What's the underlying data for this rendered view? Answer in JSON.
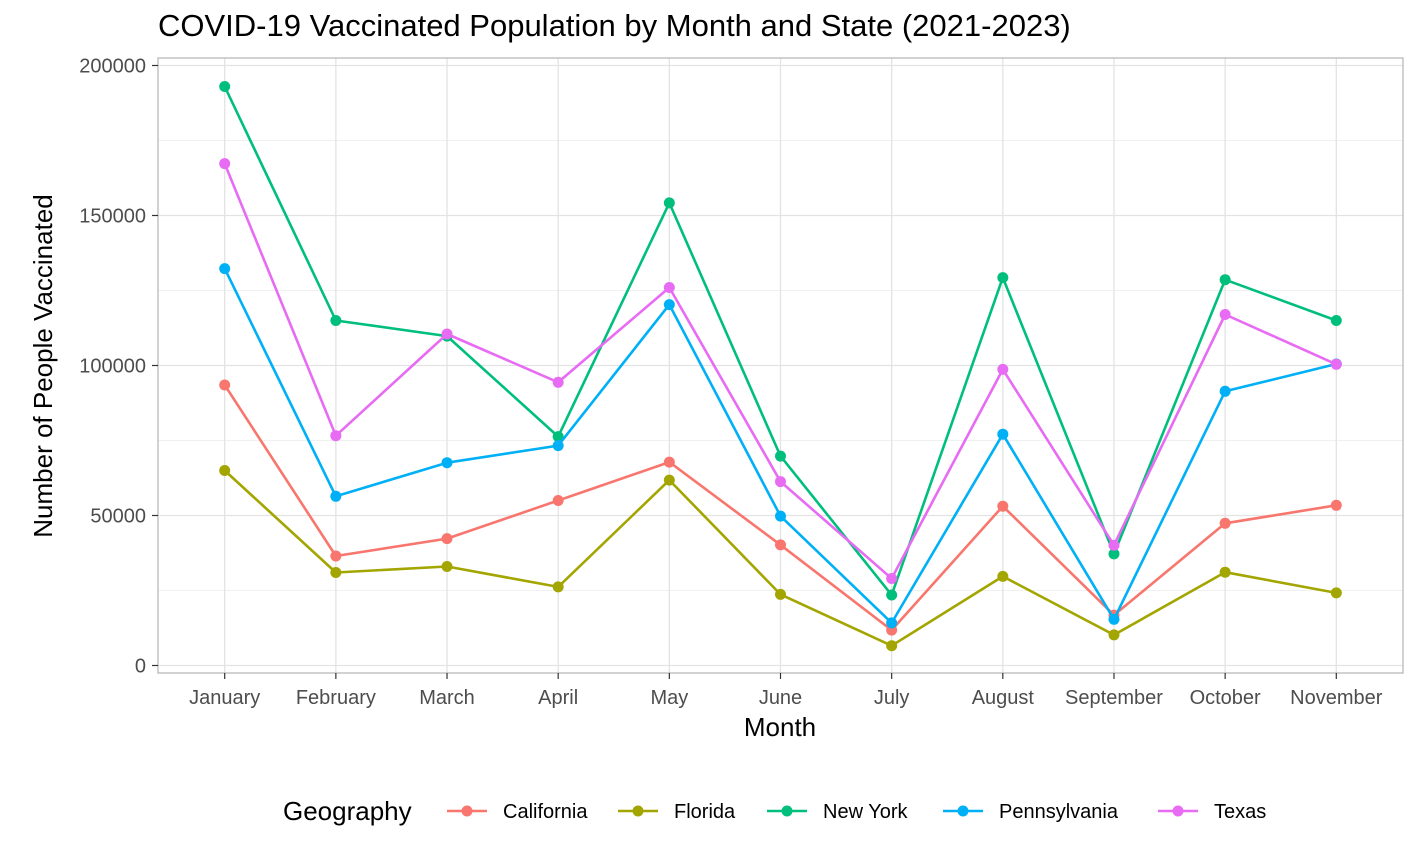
{
  "chart_data": {
    "type": "line",
    "title": "COVID-19 Vaccinated Population by Month and State (2021-2023)",
    "xlabel": "Month",
    "ylabel": "Number of People Vaccinated",
    "categories": [
      "January",
      "February",
      "March",
      "April",
      "May",
      "June",
      "July",
      "August",
      "September",
      "October",
      "November"
    ],
    "yticks": [
      0,
      50000,
      100000,
      150000,
      200000
    ],
    "ytick_labels": [
      "0",
      "50000",
      "100000",
      "150000",
      "200000"
    ],
    "ylim": [
      -2500,
      202500
    ],
    "grid": true,
    "legend": {
      "title": "Geography",
      "position": "bottom"
    },
    "series": [
      {
        "name": "California",
        "color": "#F8766D",
        "values": [
          93500,
          36500,
          42300,
          55000,
          67800,
          40200,
          11800,
          53100,
          16800,
          47400,
          53400
        ]
      },
      {
        "name": "Florida",
        "color": "#A3A500",
        "values": [
          65000,
          31000,
          33000,
          26200,
          61800,
          23700,
          6600,
          29700,
          10200,
          31100,
          24200
        ]
      },
      {
        "name": "New York",
        "color": "#00BF7D",
        "values": [
          193000,
          115000,
          109800,
          76300,
          154200,
          69800,
          23500,
          129300,
          37200,
          128600,
          115000
        ]
      },
      {
        "name": "Pennsylvania",
        "color": "#00B0F6",
        "values": [
          132300,
          56400,
          67600,
          73300,
          120300,
          49800,
          14200,
          77100,
          15400,
          91400,
          100500
        ]
      },
      {
        "name": "Texas",
        "color": "#E76BF3",
        "values": [
          167300,
          76600,
          110500,
          94400,
          126000,
          61300,
          29000,
          98700,
          40100,
          117000,
          100400
        ]
      }
    ]
  }
}
